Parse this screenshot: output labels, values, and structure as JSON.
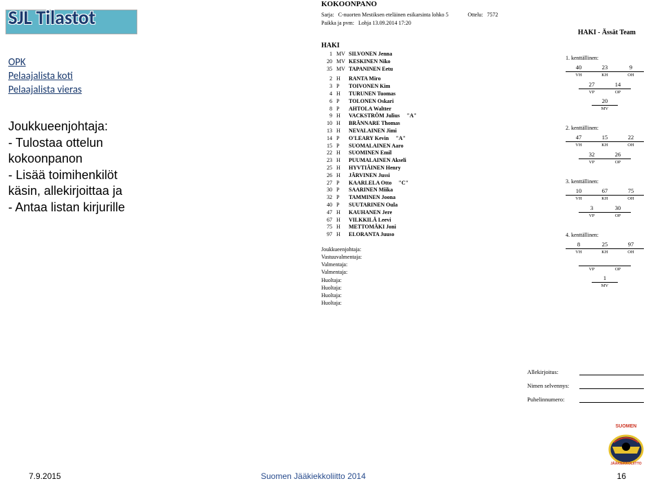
{
  "title": "SJL Tilastot",
  "nav": {
    "opk": "OPK",
    "home": "Pelaajalista koti",
    "away": "Pelaajalista vieras"
  },
  "instructions": {
    "l1": "Joukkueenjohtaja:",
    "l2": "- Tulostaa ottelun",
    "l3": "  kokoonpanon",
    "l4": "- Lisää toimihenkilöt",
    "l5": "  käsin, allekirjoittaa ja",
    "l6": "- Antaa listan kirjurille"
  },
  "roster": {
    "heading": "KOKOONPANO",
    "series_lbl": "Sarja:",
    "series_val": "C-nuorten Mestiksen eteläinen esikarsinta lohko 5",
    "match_lbl": "Ottelu:",
    "match_val": "7572",
    "place_lbl": "Paikka ja pvm:",
    "place_val": "Lohja 13.09.2014 17:20",
    "matchup": "HAKI - Ässät Team",
    "team": "HAKI",
    "players_group1": [
      {
        "num": "1",
        "pos": "MV",
        "name": "SILVONEN Jenna",
        "mark": ""
      },
      {
        "num": "20",
        "pos": "MV",
        "name": "KESKINEN Niko",
        "mark": ""
      },
      {
        "num": "35",
        "pos": "MV",
        "name": "TAPANINEN Eetu",
        "mark": ""
      }
    ],
    "players_group2": [
      {
        "num": "2",
        "pos": "H",
        "name": "RANTA Miro",
        "mark": ""
      },
      {
        "num": "3",
        "pos": "P",
        "name": "TOIVONEN Kim",
        "mark": ""
      },
      {
        "num": "4",
        "pos": "H",
        "name": "TURUNEN Tuomas",
        "mark": ""
      },
      {
        "num": "6",
        "pos": "P",
        "name": "TOLONEN Oskari",
        "mark": ""
      },
      {
        "num": "8",
        "pos": "P",
        "name": "AHTOLA Waltter",
        "mark": ""
      },
      {
        "num": "9",
        "pos": "H",
        "name": "VACKSTRÖM Julius",
        "mark": "\"A\""
      },
      {
        "num": "10",
        "pos": "H",
        "name": "BRÄNNARE Thomas",
        "mark": ""
      },
      {
        "num": "13",
        "pos": "H",
        "name": "NEVALAINEN Jimi",
        "mark": ""
      },
      {
        "num": "14",
        "pos": "P",
        "name": "O'LEARY Kevin",
        "mark": "\"A\""
      },
      {
        "num": "15",
        "pos": "P",
        "name": "SUOMALAINEN Aaro",
        "mark": ""
      },
      {
        "num": "22",
        "pos": "H",
        "name": "SUOMINEN Emil",
        "mark": ""
      },
      {
        "num": "23",
        "pos": "H",
        "name": "PUUMALAINEN Akseli",
        "mark": ""
      },
      {
        "num": "25",
        "pos": "H",
        "name": "HYVTIÄINEN Henry",
        "mark": ""
      },
      {
        "num": "26",
        "pos": "H",
        "name": "JÄRVINEN Jussi",
        "mark": ""
      },
      {
        "num": "27",
        "pos": "P",
        "name": "KAARLELA Otto",
        "mark": "\"C\""
      },
      {
        "num": "30",
        "pos": "P",
        "name": "SAARINEN Miika",
        "mark": ""
      },
      {
        "num": "32",
        "pos": "P",
        "name": "TAMMINEN Joona",
        "mark": ""
      },
      {
        "num": "40",
        "pos": "P",
        "name": "SUUTARINEN Oula",
        "mark": ""
      },
      {
        "num": "47",
        "pos": "H",
        "name": "KAUHANEN Jere",
        "mark": ""
      },
      {
        "num": "67",
        "pos": "H",
        "name": "VILKKILÄ Leevi",
        "mark": ""
      },
      {
        "num": "75",
        "pos": "H",
        "name": "METTOMÄKI Joni",
        "mark": ""
      },
      {
        "num": "97",
        "pos": "H",
        "name": "ELORANTA Juuso",
        "mark": ""
      }
    ],
    "officials": [
      "Joukkueenjohtaja:",
      "Vastuuvalmentaja:",
      "Valmentaja:",
      "Valmentaja:",
      "Huoltaja:",
      "Huoltaja:",
      "Huoltaja:",
      "Huoltaja:"
    ]
  },
  "formations": [
    {
      "title": "1. kenttällinen:",
      "line1": [
        {
          "n": "40",
          "l": "VH"
        },
        {
          "n": "23",
          "l": "KH"
        },
        {
          "n": "9",
          "l": "OH"
        }
      ],
      "line2": [
        {
          "n": "27",
          "l": "VP"
        },
        {
          "n": "14",
          "l": "OP"
        }
      ],
      "mv": {
        "n": "20",
        "l": "MV"
      }
    },
    {
      "title": "2. kenttällinen:",
      "line1": [
        {
          "n": "47",
          "l": "VH"
        },
        {
          "n": "15",
          "l": "KH"
        },
        {
          "n": "22",
          "l": "OH"
        }
      ],
      "line2": [
        {
          "n": "32",
          "l": "VP"
        },
        {
          "n": "26",
          "l": "OP"
        }
      ],
      "mv": null
    },
    {
      "title": "3. kenttällinen:",
      "line1": [
        {
          "n": "10",
          "l": "VH"
        },
        {
          "n": "67",
          "l": "KH"
        },
        {
          "n": "75",
          "l": "OH"
        }
      ],
      "line2": [
        {
          "n": "3",
          "l": "VP"
        },
        {
          "n": "30",
          "l": "OP"
        }
      ],
      "mv": null
    },
    {
      "title": "4. kenttällinen:",
      "line1": [
        {
          "n": "8",
          "l": "VH"
        },
        {
          "n": "25",
          "l": "KH"
        },
        {
          "n": "97",
          "l": "OH"
        }
      ],
      "line2": [
        {
          "n": "",
          "l": "VP"
        },
        {
          "n": "",
          "l": "OP"
        }
      ],
      "mv": {
        "n": "1",
        "l": "MV"
      }
    }
  ],
  "signatures": {
    "sig": "Allekirjoitus:",
    "name": "Nimen selvennys:",
    "phone": "Puhelinnumero:"
  },
  "footer": {
    "date": "7.9.2015",
    "mid": "Suomen Jääkiekkoliitto 2014",
    "page": "16"
  },
  "colors": {
    "brand_blue": "#1a3a6e",
    "bar_teal": "#5fb5c9",
    "footer_blue": "#264a8c",
    "logo_yellow": "#e8c22e",
    "logo_navy": "#1d2e57"
  }
}
